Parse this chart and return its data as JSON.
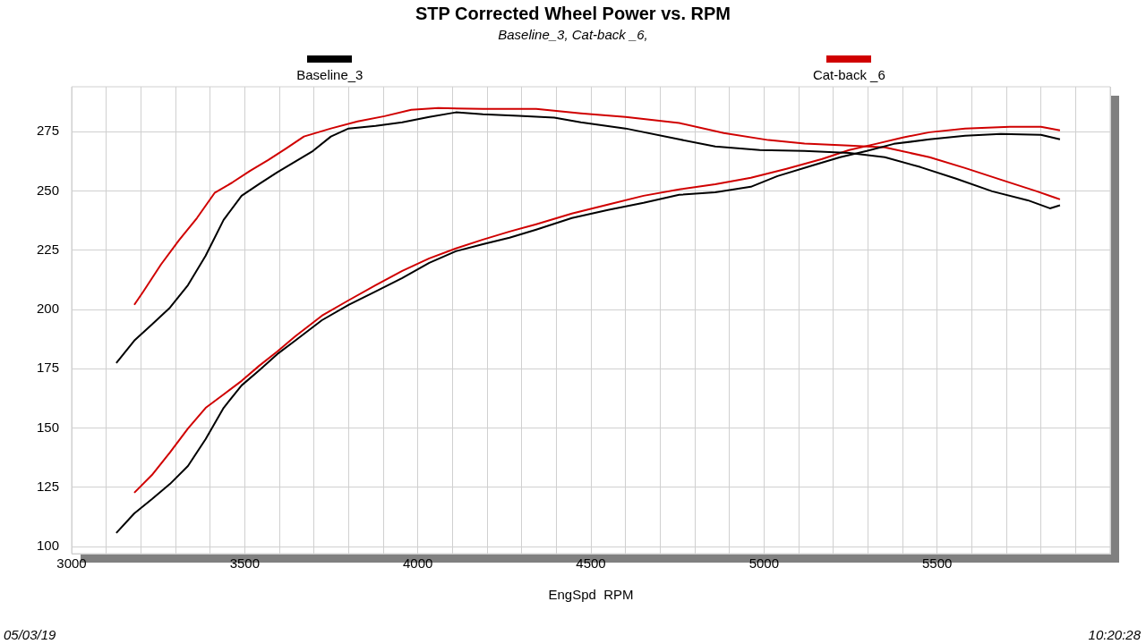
{
  "chart_data": {
    "type": "line",
    "title": "STP Corrected Wheel Power vs. RPM",
    "subtitle": "Baseline_3, Cat-back _6,",
    "xlabel": "EngSpd  RPM",
    "xlim": [
      3000,
      6000
    ],
    "ylim": [
      97,
      294
    ],
    "xticks": [
      3000,
      {
        "value": 3100,
        "label": null
      },
      {
        "value": 3200,
        "label": null
      },
      {
        "value": 3300,
        "label": null
      },
      {
        "value": 3400,
        "label": null
      },
      3500,
      {
        "value": 3600,
        "label": null
      },
      {
        "value": 3700,
        "label": null
      },
      {
        "value": 3800,
        "label": null
      },
      {
        "value": 3900,
        "label": null
      },
      4000,
      {
        "value": 4100,
        "label": null
      },
      {
        "value": 4200,
        "label": null
      },
      {
        "value": 4300,
        "label": null
      },
      {
        "value": 4400,
        "label": null
      },
      4500,
      {
        "value": 4600,
        "label": null
      },
      {
        "value": 4700,
        "label": null
      },
      {
        "value": 4800,
        "label": null
      },
      {
        "value": 4900,
        "label": null
      },
      5000,
      {
        "value": 5100,
        "label": null
      },
      {
        "value": 5200,
        "label": null
      },
      {
        "value": 5300,
        "label": null
      },
      {
        "value": 5400,
        "label": null
      },
      5500,
      {
        "value": 5600,
        "label": null
      },
      {
        "value": 5700,
        "label": null
      },
      {
        "value": 5800,
        "label": null
      },
      {
        "value": 5900,
        "label": null
      },
      {
        "value": 6000,
        "label": null
      }
    ],
    "yticks": [
      100,
      125,
      150,
      175,
      200,
      225,
      250,
      275
    ],
    "grid": true,
    "legend": "top",
    "marker": "none",
    "line_style": "solid",
    "annotations": [
      "05/03/19",
      "10:20:28"
    ],
    "series": [
      {
        "name": "Baseline_3",
        "color": "#000000",
        "x": [
          3129,
          3181,
          3232,
          3284,
          3336,
          3387,
          3439,
          3491,
          3542,
          3594,
          3646,
          3697,
          3749,
          3800,
          3878,
          3955,
          4033,
          4110,
          4188,
          4291,
          4394,
          4471,
          4600,
          4755,
          4859,
          4988,
          5117,
          5246,
          5349,
          5452,
          5555,
          5659,
          5762,
          5826,
          5855
        ],
        "values": [
          177.4,
          186.9,
          193.7,
          200.8,
          210.3,
          222.7,
          237.8,
          248,
          253,
          257.9,
          262.4,
          266.9,
          273,
          276.4,
          277.5,
          279,
          281.3,
          283.2,
          282.4,
          281.7,
          281,
          279,
          276.4,
          271.8,
          268.8,
          267.3,
          266.9,
          266.1,
          264.3,
          260.1,
          255.2,
          249.9,
          246.1,
          242.7,
          244
        ]
      },
      {
        "color": "#000000",
        "x": [
          3129,
          3181,
          3232,
          3284,
          3336,
          3387,
          3439,
          3491,
          3542,
          3594,
          3646,
          3723,
          3800,
          3878,
          3955,
          4033,
          4110,
          4188,
          4265,
          4342,
          4445,
          4549,
          4652,
          4755,
          4859,
          4962,
          5039,
          5142,
          5220,
          5297,
          5375,
          5478,
          5581,
          5684,
          5800,
          5855
        ],
        "values": [
          105.7,
          114,
          120,
          126.4,
          134,
          145.3,
          158.5,
          168,
          174.4,
          181.2,
          186.9,
          195.5,
          202,
          207.6,
          213.3,
          219.7,
          224.6,
          227.6,
          230.3,
          233.7,
          238.6,
          242,
          245,
          248.4,
          249.5,
          251.8,
          256.3,
          260.9,
          264.3,
          266.9,
          269.9,
          271.8,
          273.3,
          274.1,
          273.7,
          271.8
        ]
      },
      {
        "name": "Cat-back _6",
        "color": "#d00000",
        "x": [
          3181,
          3207,
          3258,
          3310,
          3362,
          3413,
          3465,
          3516,
          3568,
          3620,
          3671,
          3749,
          3826,
          3904,
          3981,
          4059,
          4188,
          4342,
          4471,
          4600,
          4755,
          4884,
          5013,
          5117,
          5246,
          5349,
          5478,
          5581,
          5684,
          5788,
          5839,
          5855
        ],
        "values": [
          202,
          207.6,
          219,
          229.2,
          238.6,
          249.2,
          253.7,
          258.6,
          263.1,
          268,
          273,
          276.4,
          279.4,
          281.6,
          284.3,
          285,
          284.7,
          284.7,
          282.8,
          281.3,
          278.7,
          274.5,
          271.5,
          270,
          269.2,
          268.4,
          264.3,
          259.7,
          254.8,
          249.9,
          247.3,
          246.5
        ]
      },
      {
        "color": "#d00000",
        "x": [
          3181,
          3232,
          3284,
          3336,
          3387,
          3439,
          3491,
          3542,
          3594,
          3646,
          3723,
          3800,
          3878,
          3955,
          4033,
          4110,
          4188,
          4265,
          4342,
          4445,
          4549,
          4652,
          4755,
          4859,
          4962,
          5065,
          5168,
          5246,
          5323,
          5401,
          5478,
          5581,
          5710,
          5800,
          5855
        ],
        "values": [
          122.7,
          130.2,
          139.7,
          149.8,
          158.5,
          164.2,
          169.9,
          176.3,
          182.3,
          188.7,
          197.4,
          203.9,
          210.3,
          216.3,
          221.6,
          225.8,
          229.5,
          232.9,
          236,
          240.5,
          244.3,
          248,
          250.7,
          252.9,
          255.6,
          259.4,
          263.5,
          267.3,
          269.9,
          272.6,
          274.8,
          276.4,
          277.1,
          277.1,
          275.6
        ]
      }
    ]
  }
}
